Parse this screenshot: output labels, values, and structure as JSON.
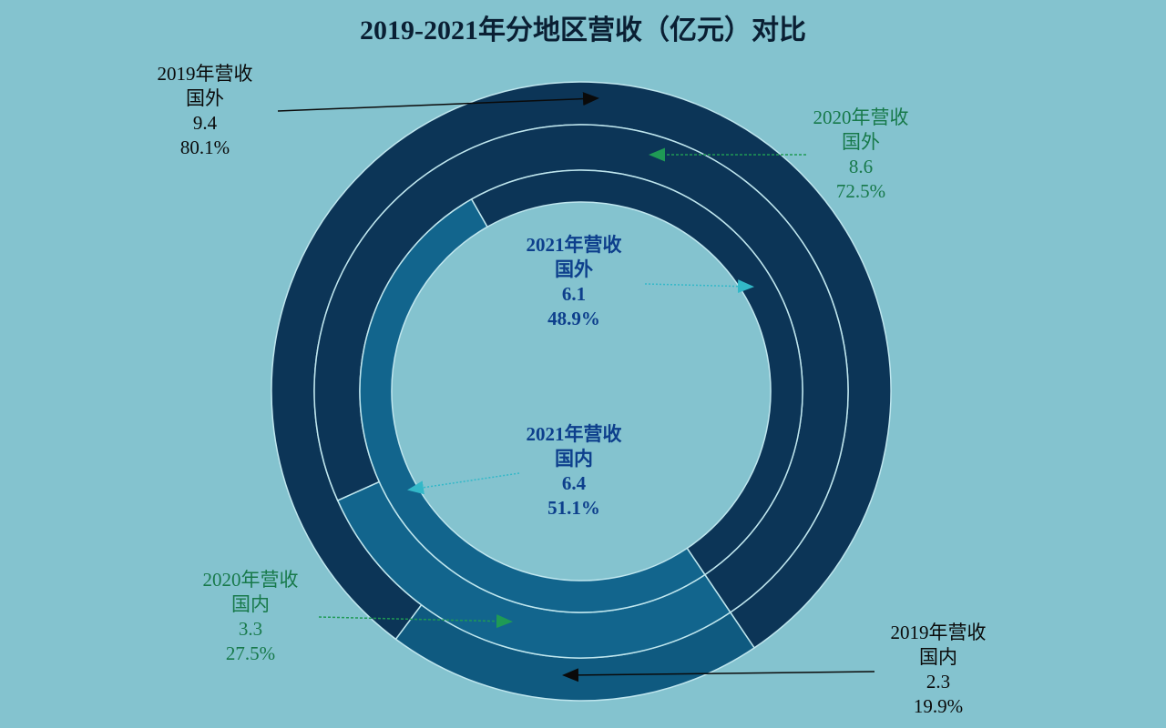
{
  "chart_data": {
    "type": "pie",
    "subtype": "multi-ring donut",
    "title": "2019-2021年分地区营收（亿元）对比",
    "unit": "亿元",
    "rings": [
      {
        "name": "2019年营收",
        "slices": [
          {
            "category": "国外",
            "value": 9.4,
            "percent": "80.1%",
            "color": "#0c3557"
          },
          {
            "category": "国内",
            "value": 2.3,
            "percent": "19.9%",
            "color": "#0f5a80"
          }
        ]
      },
      {
        "name": "2020年营收",
        "slices": [
          {
            "category": "国外",
            "value": 8.6,
            "percent": "72.5%",
            "color": "#0c3557"
          },
          {
            "category": "国内",
            "value": 3.3,
            "percent": "27.5%",
            "color": "#12658d"
          }
        ]
      },
      {
        "name": "2021年营收",
        "slices": [
          {
            "category": "国外",
            "value": 6.1,
            "percent": "48.9%",
            "color": "#0c3557"
          },
          {
            "category": "国内",
            "value": 6.4,
            "percent": "51.1%",
            "color": "#12658d"
          }
        ]
      }
    ],
    "background": "#84c3cf",
    "label_colors": {
      "2019": "#0a0a0a",
      "2020": "#17794a",
      "2021": "#0d3f8c"
    }
  }
}
